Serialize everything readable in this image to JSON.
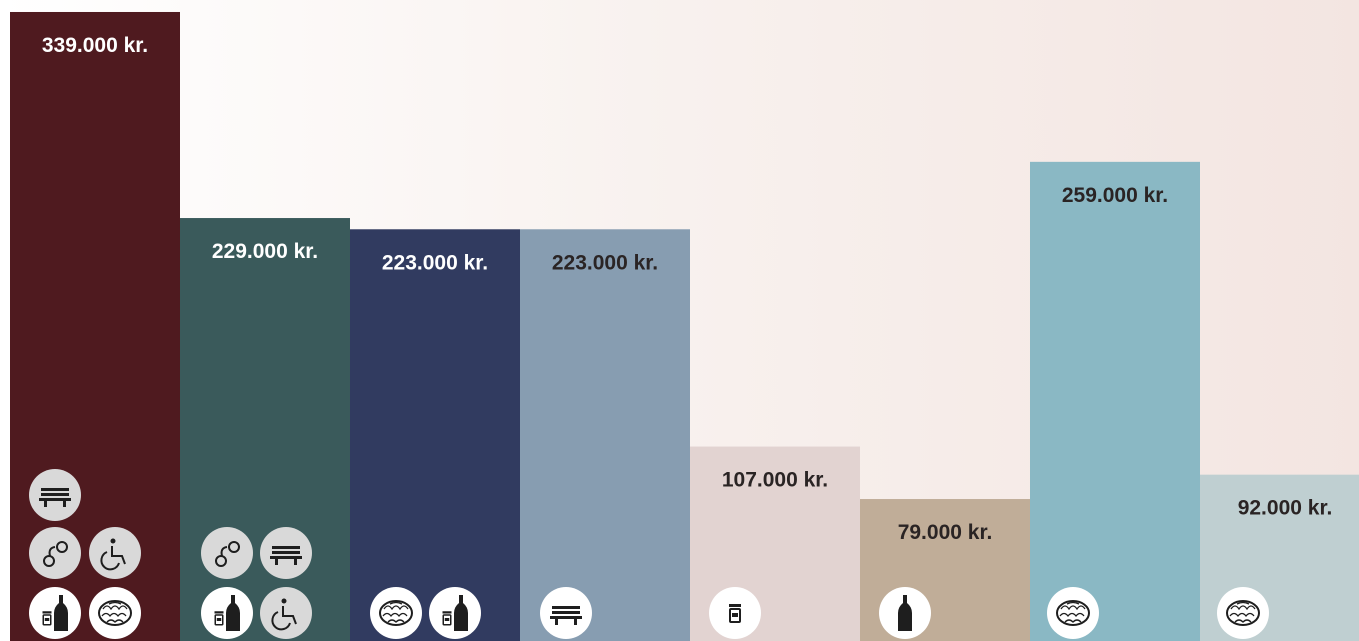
{
  "chart_data": {
    "type": "bar",
    "categories": [
      null,
      null,
      null,
      null,
      null,
      null,
      null,
      null
    ],
    "values": [
      339000,
      229000,
      223000,
      223000,
      107000,
      79000,
      259000,
      92000
    ],
    "value_labels": [
      "339.000 kr.",
      "229.000 kr.",
      "223.000 kr.",
      "223.000 kr.",
      "107.000 kr.",
      "79.000 kr.",
      "259.000 kr.",
      "92.000 kr."
    ],
    "colors": [
      "#4f1a1f",
      "#3a5a5b",
      "#313b60",
      "#879db1",
      "#e2d3d1",
      "#c0ad98",
      "#8ab8c4",
      "#bfcfd1"
    ],
    "ylim": [
      0,
      345400
    ]
  }
}
